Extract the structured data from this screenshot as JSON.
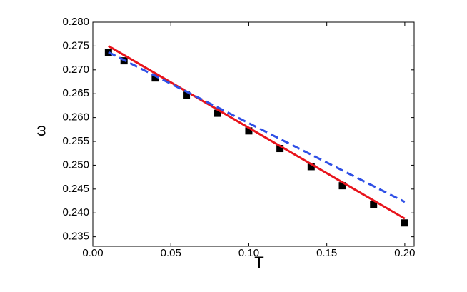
{
  "chart_data": {
    "type": "scatter",
    "x_label": "T",
    "y_label": "ω",
    "xlim": [
      0,
      0.206
    ],
    "ylim": [
      0.233,
      0.28
    ],
    "xticks": [
      {
        "value": 0,
        "label": "0.00"
      },
      {
        "value": 0.05,
        "label": "0.05"
      },
      {
        "value": 0.1,
        "label": "0.10"
      },
      {
        "value": 0.15,
        "label": "0.15"
      },
      {
        "value": 0.2,
        "label": "0.20"
      }
    ],
    "yticks": [
      {
        "value": 0.235,
        "label": "0.235"
      },
      {
        "value": 0.24,
        "label": "0.240"
      },
      {
        "value": 0.245,
        "label": "0.245"
      },
      {
        "value": 0.25,
        "label": "0.250"
      },
      {
        "value": 0.255,
        "label": "0.255"
      },
      {
        "value": 0.26,
        "label": "0.260"
      },
      {
        "value": 0.265,
        "label": "0.265"
      },
      {
        "value": 0.27,
        "label": "0.270"
      },
      {
        "value": 0.275,
        "label": "0.275"
      },
      {
        "value": 0.28,
        "label": "0.280"
      }
    ],
    "series": [
      {
        "mode": "markers",
        "color": "#000000",
        "x": [
          0.01,
          0.02,
          0.04,
          0.06,
          0.08,
          0.1,
          0.12,
          0.14,
          0.16,
          0.18,
          0.2
        ],
        "values": [
          0.2737,
          0.2719,
          0.2683,
          0.2647,
          0.2609,
          0.2572,
          0.2535,
          0.2497,
          0.2457,
          0.2418,
          0.2379
        ]
      },
      {
        "mode": "line",
        "dash": false,
        "color": "#e8141c",
        "x": [
          0.01,
          0.2
        ],
        "values": [
          0.275,
          0.2388
        ]
      },
      {
        "mode": "line",
        "dash": true,
        "color": "#2e4fe6",
        "x": [
          0.01,
          0.2
        ],
        "values": [
          0.2737,
          0.2423
        ]
      }
    ]
  }
}
